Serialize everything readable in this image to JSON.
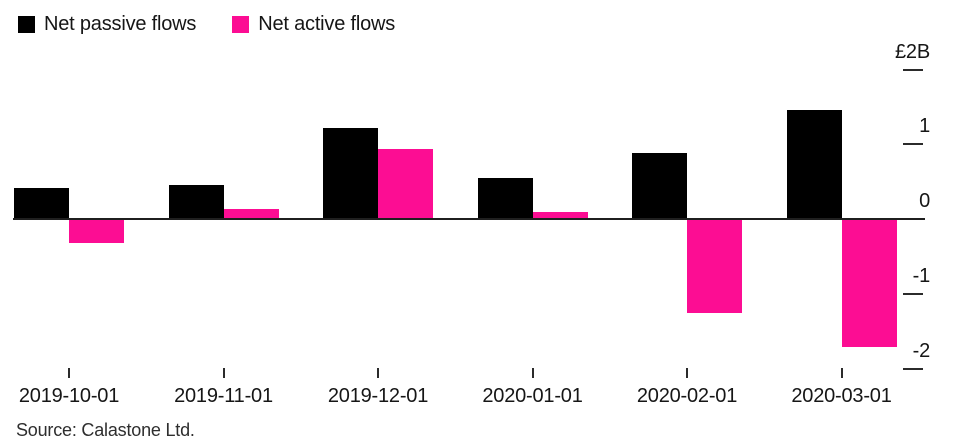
{
  "legend": {
    "passive_label": "Net passive flows",
    "active_label": "Net active flows"
  },
  "source": "Source: Calastone Ltd.",
  "colors": {
    "passive": "#000000",
    "active": "#fc0d93",
    "axis": "#1f1f1f"
  },
  "chart_data": {
    "type": "bar",
    "unit": "GBP billions",
    "title": "",
    "categories": [
      "2019-10-01",
      "2019-11-01",
      "2019-12-01",
      "2020-01-01",
      "2020-02-01",
      "2020-03-01"
    ],
    "series": [
      {
        "name": "Net passive flows",
        "color_key": "passive",
        "values": [
          0.41,
          0.45,
          1.22,
          0.55,
          0.88,
          1.46
        ]
      },
      {
        "name": "Net active flows",
        "color_key": "active",
        "values": [
          -0.32,
          0.13,
          0.94,
          0.1,
          -1.26,
          -1.71
        ]
      }
    ],
    "y_axis": {
      "ylim": [
        -2,
        2
      ],
      "ticks": [
        {
          "label": "£2B",
          "value": 2
        },
        {
          "label": "1",
          "value": 1
        },
        {
          "label": "0",
          "value": 0
        },
        {
          "label": "-1",
          "value": -1
        },
        {
          "label": "-2",
          "value": -2
        }
      ]
    },
    "legend_position": "top-left",
    "grid": false
  }
}
